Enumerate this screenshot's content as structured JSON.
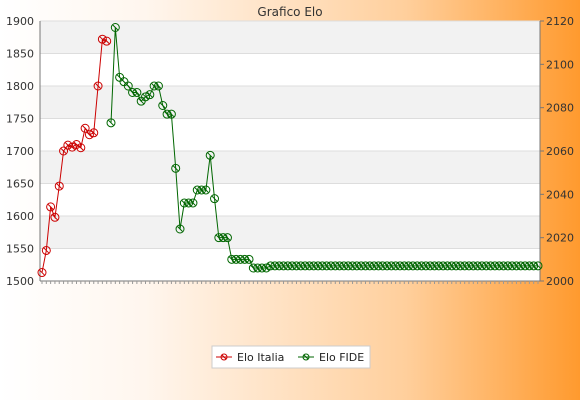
{
  "chart_data": {
    "type": "line",
    "title": "Grafico Elo",
    "grid": true,
    "legend_position": "bottom-center",
    "y_left": {
      "min": 1500,
      "max": 1900,
      "ticks": [
        1500,
        1550,
        1600,
        1650,
        1700,
        1750,
        1800,
        1850,
        1900
      ]
    },
    "y_right": {
      "min": 2000,
      "max": 2120,
      "ticks": [
        2000,
        2020,
        2040,
        2060,
        2080,
        2100,
        2120
      ]
    },
    "series": [
      {
        "name": "Elo Italia",
        "axis": "left",
        "color": "#cc0000",
        "values": [
          1513,
          1547,
          1614,
          1598,
          1646,
          1700,
          1709,
          1706,
          1710,
          1705,
          1735,
          1725,
          1728,
          1800,
          1872,
          1869
        ]
      },
      {
        "name": "Elo FIDE",
        "axis": "right",
        "color": "#006600",
        "start_index": 16,
        "values": [
          2073,
          2117,
          2094,
          2092,
          2090,
          2087,
          2087,
          2083,
          2085,
          2086,
          2090,
          2090,
          2081,
          2077,
          2077,
          2052,
          2024,
          2036,
          2036,
          2036,
          2042,
          2042,
          2042,
          2058,
          2038,
          2020,
          2020,
          2020,
          2010,
          2010,
          2010,
          2010,
          2010,
          2006,
          2006,
          2006,
          2006,
          2007,
          2007,
          2007,
          2007,
          2007,
          2007,
          2007,
          2007,
          2007,
          2007,
          2007,
          2007,
          2007,
          2007,
          2007,
          2007,
          2007,
          2007,
          2007,
          2007,
          2007,
          2007,
          2007,
          2007,
          2007,
          2007,
          2007,
          2007,
          2007,
          2007,
          2007,
          2007,
          2007,
          2007,
          2007,
          2007,
          2007,
          2007,
          2007,
          2007,
          2007,
          2007,
          2007,
          2007,
          2007,
          2007,
          2007,
          2007,
          2007,
          2007,
          2007,
          2007,
          2007,
          2007,
          2007,
          2007,
          2007,
          2007,
          2007,
          2007,
          2007,
          2007,
          2007
        ]
      }
    ],
    "legend": [
      "Elo Italia",
      "Elo FIDE"
    ]
  }
}
